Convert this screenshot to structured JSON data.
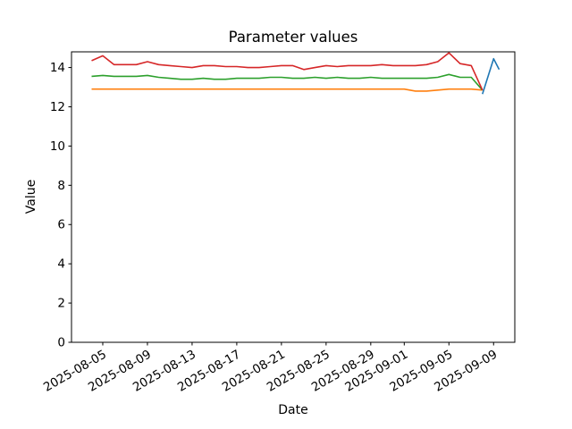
{
  "figure": {
    "background_color": "#ffffff",
    "spine_color": "#000000",
    "text_color": "#000000"
  },
  "chart_data": {
    "type": "line",
    "title": "Parameter values",
    "xlabel": "Date",
    "ylabel": "Value",
    "grid": false,
    "legend": null,
    "x_axis": {
      "tick_labels": [
        "2025-08-05",
        "2025-08-09",
        "2025-08-13",
        "2025-08-17",
        "2025-08-21",
        "2025-08-25",
        "2025-08-29",
        "2025-09-01",
        "2025-09-05",
        "2025-09-09"
      ],
      "tick_rotation_deg": 30,
      "lim_days_since_2025_08_01": [
        1.2,
        40.9
      ]
    },
    "y_axis": {
      "ticks": [
        0,
        2,
        4,
        6,
        8,
        10,
        12,
        14
      ],
      "lim": [
        0,
        14.8
      ]
    },
    "dates": [
      "2025-08-04",
      "2025-08-05",
      "2025-08-06",
      "2025-08-07",
      "2025-08-08",
      "2025-08-09",
      "2025-08-10",
      "2025-08-11",
      "2025-08-12",
      "2025-08-13",
      "2025-08-14",
      "2025-08-15",
      "2025-08-16",
      "2025-08-17",
      "2025-08-18",
      "2025-08-19",
      "2025-08-20",
      "2025-08-21",
      "2025-08-22",
      "2025-08-23",
      "2025-08-24",
      "2025-08-25",
      "2025-08-26",
      "2025-08-27",
      "2025-08-28",
      "2025-08-29",
      "2025-08-30",
      "2025-08-31",
      "2025-09-01",
      "2025-09-02",
      "2025-09-03",
      "2025-09-04",
      "2025-09-05",
      "2025-09-06",
      "2025-09-07",
      "2025-09-08"
    ],
    "series": [
      {
        "name": "blue",
        "color": "#1f77b4",
        "dates": [
          "2025-09-08",
          "2025-09-09",
          "2025-09-09T12:00"
        ],
        "values": [
          12.65,
          14.45,
          13.9
        ]
      },
      {
        "name": "orange",
        "color": "#ff7f0e",
        "values": [
          12.9,
          12.9,
          12.9,
          12.9,
          12.9,
          12.9,
          12.9,
          12.9,
          12.9,
          12.9,
          12.9,
          12.9,
          12.9,
          12.9,
          12.9,
          12.9,
          12.9,
          12.9,
          12.9,
          12.9,
          12.9,
          12.9,
          12.9,
          12.9,
          12.9,
          12.9,
          12.9,
          12.9,
          12.9,
          12.8,
          12.8,
          12.85,
          12.9,
          12.9,
          12.9,
          12.85
        ]
      },
      {
        "name": "green",
        "color": "#2ca02c",
        "values": [
          13.55,
          13.6,
          13.55,
          13.55,
          13.55,
          13.6,
          13.5,
          13.45,
          13.4,
          13.4,
          13.45,
          13.4,
          13.4,
          13.45,
          13.45,
          13.45,
          13.5,
          13.5,
          13.45,
          13.45,
          13.5,
          13.45,
          13.5,
          13.45,
          13.45,
          13.5,
          13.45,
          13.45,
          13.45,
          13.45,
          13.45,
          13.5,
          13.65,
          13.5,
          13.5,
          12.85
        ]
      },
      {
        "name": "red",
        "color": "#d62728",
        "values": [
          14.35,
          14.6,
          14.15,
          14.15,
          14.15,
          14.3,
          14.15,
          14.1,
          14.05,
          14.0,
          14.1,
          14.1,
          14.05,
          14.05,
          14.0,
          14.0,
          14.05,
          14.1,
          14.1,
          13.9,
          14.0,
          14.1,
          14.05,
          14.1,
          14.1,
          14.1,
          14.15,
          14.1,
          14.1,
          14.1,
          14.15,
          14.3,
          14.75,
          14.2,
          14.1,
          12.85
        ]
      }
    ]
  }
}
